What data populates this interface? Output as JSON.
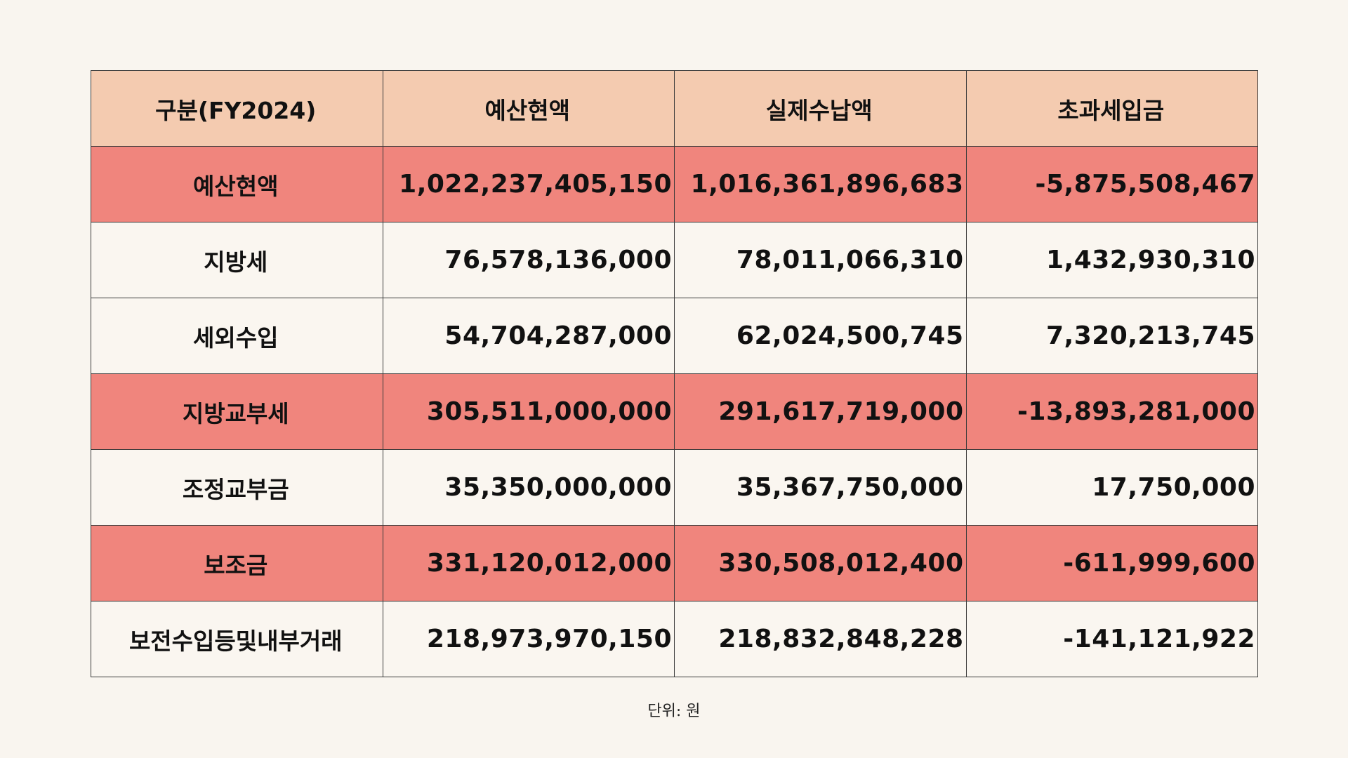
{
  "colors": {
    "background": "#f9f5ef",
    "header_fill": "#f4cbb0",
    "highlight_fill": "#f0857d",
    "plain_fill": "#faf6f0",
    "border": "#3a3a3a"
  },
  "table": {
    "headers": [
      "구분(FY2024)",
      "예산현액",
      "실제수납액",
      "초과세입금"
    ],
    "rows": [
      {
        "label": "예산현액",
        "highlight": true,
        "budget": "1,022,237,405,150",
        "actual": "1,016,361,896,683",
        "excess": "-5,875,508,467"
      },
      {
        "label": "지방세",
        "highlight": false,
        "budget": "76,578,136,000",
        "actual": "78,011,066,310",
        "excess": "1,432,930,310"
      },
      {
        "label": "세외수입",
        "highlight": false,
        "budget": "54,704,287,000",
        "actual": "62,024,500,745",
        "excess": "7,320,213,745"
      },
      {
        "label": "지방교부세",
        "highlight": true,
        "budget": "305,511,000,000",
        "actual": "291,617,719,000",
        "excess": "-13,893,281,000"
      },
      {
        "label": "조정교부금",
        "highlight": false,
        "budget": "35,350,000,000",
        "actual": "35,367,750,000",
        "excess": "17,750,000"
      },
      {
        "label": "보조금",
        "highlight": true,
        "budget": "331,120,012,000",
        "actual": "330,508,012,400",
        "excess": "-611,999,600"
      },
      {
        "label": "보전수입등및내부거래",
        "highlight": false,
        "budget": "218,973,970,150",
        "actual": "218,832,848,228",
        "excess": "-141,121,922"
      }
    ]
  },
  "footnote": "단위: 원"
}
